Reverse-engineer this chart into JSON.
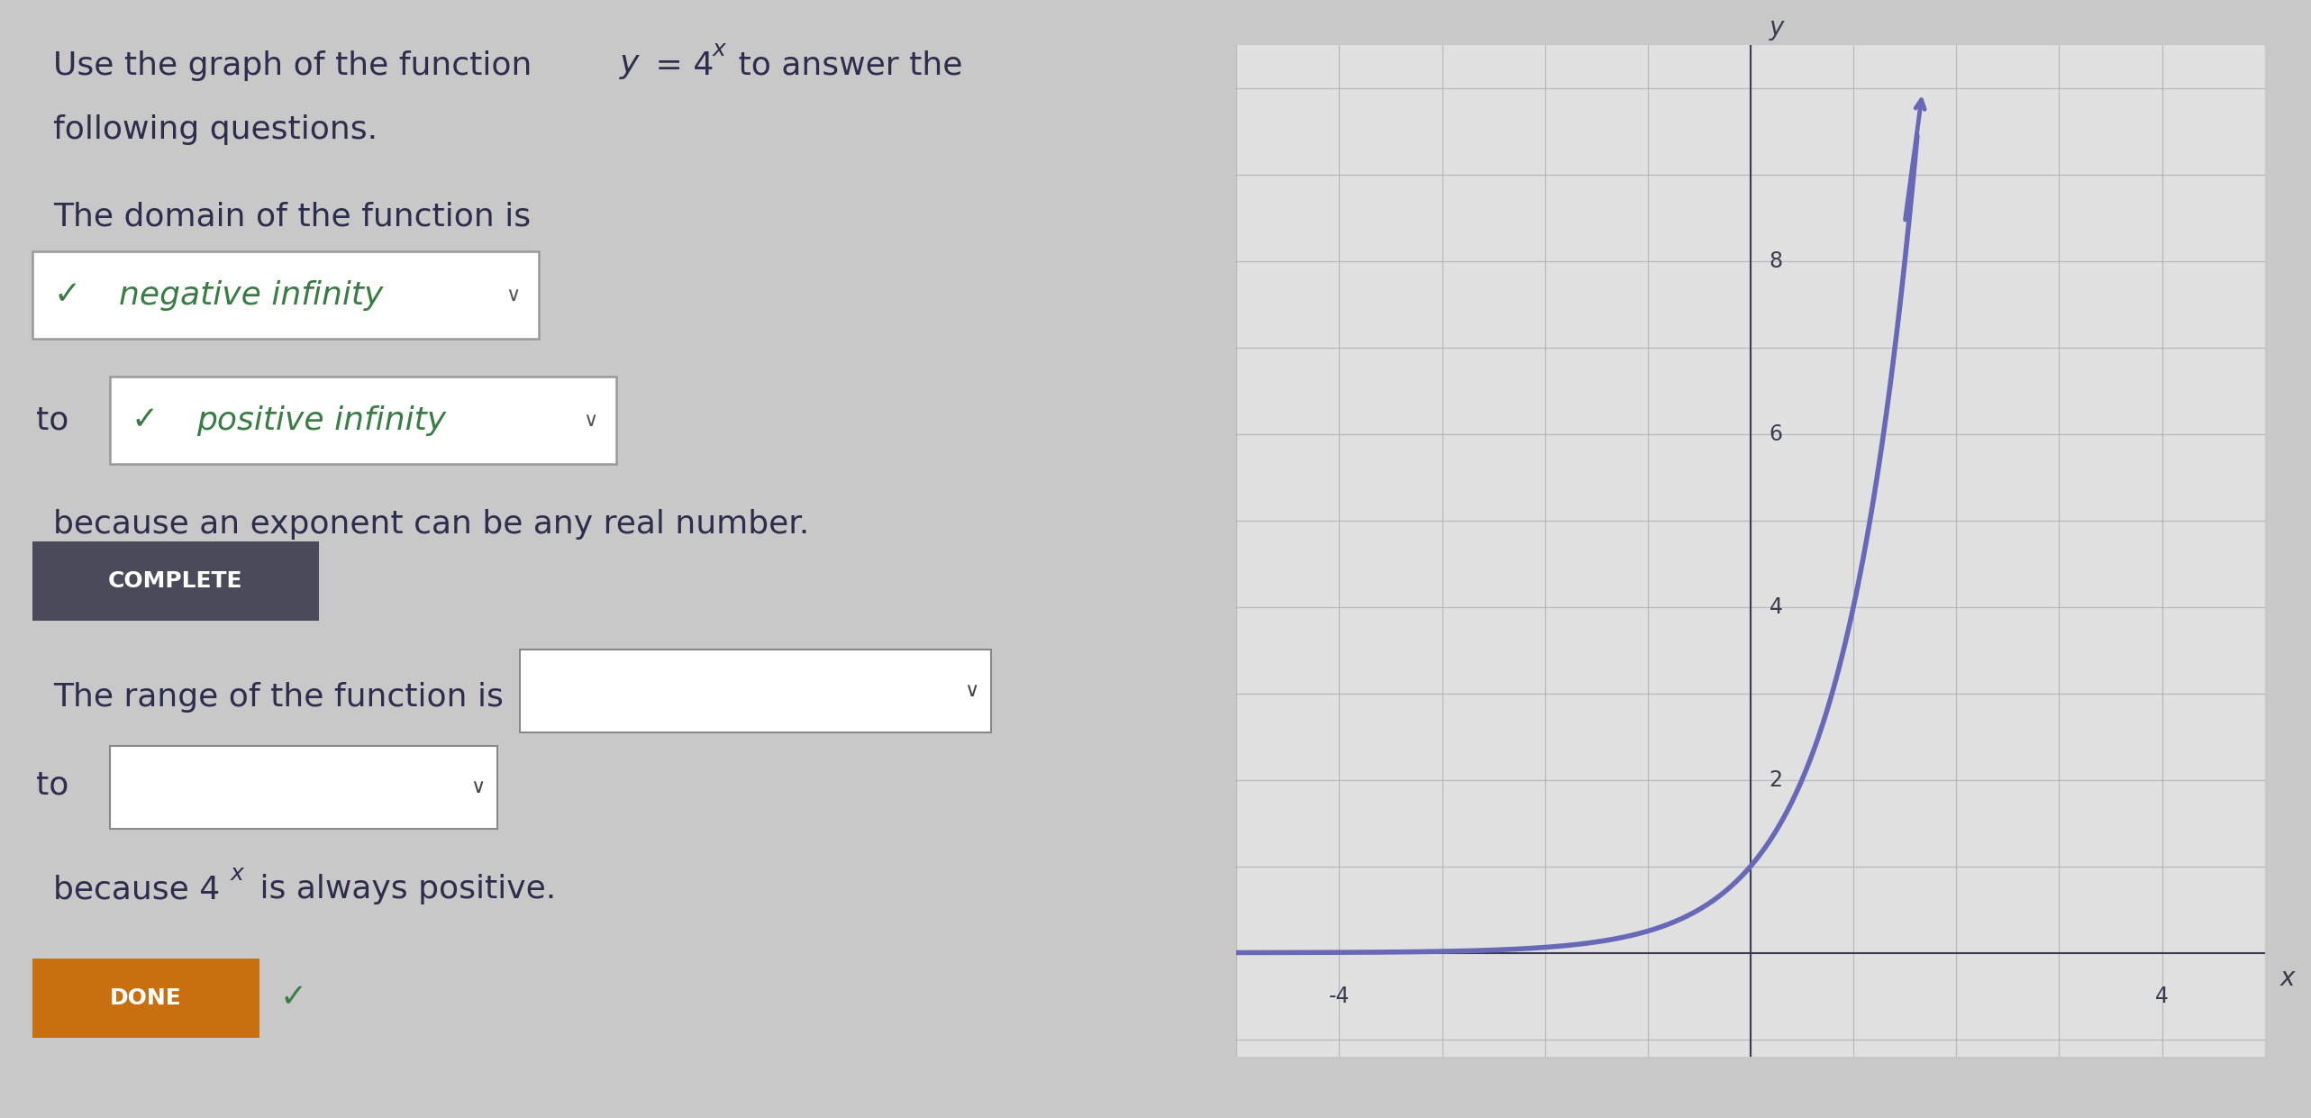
{
  "bg_color": "#c8c8c8",
  "left_panel_bg": "#cccccc",
  "right_panel_bg": "#d8d8d8",
  "graph_inner_bg": "#e0e0e0",
  "text_color": "#2d2d4e",
  "green_color": "#3a7d44",
  "complete_bg": "#4a4a5a",
  "complete_text": "#ffffff",
  "done_bg": "#c87010",
  "curve_color": "#6868b8",
  "axis_color": "#3a3a50",
  "grid_color": "#b0b0b0",
  "xlim": [
    -5,
    5
  ],
  "ylim": [
    -1.2,
    10.5
  ],
  "xlabel": "x",
  "ylabel": "y",
  "ytick_labels": [
    2,
    4,
    6,
    8
  ],
  "xtick_labels": [
    -4,
    4
  ]
}
